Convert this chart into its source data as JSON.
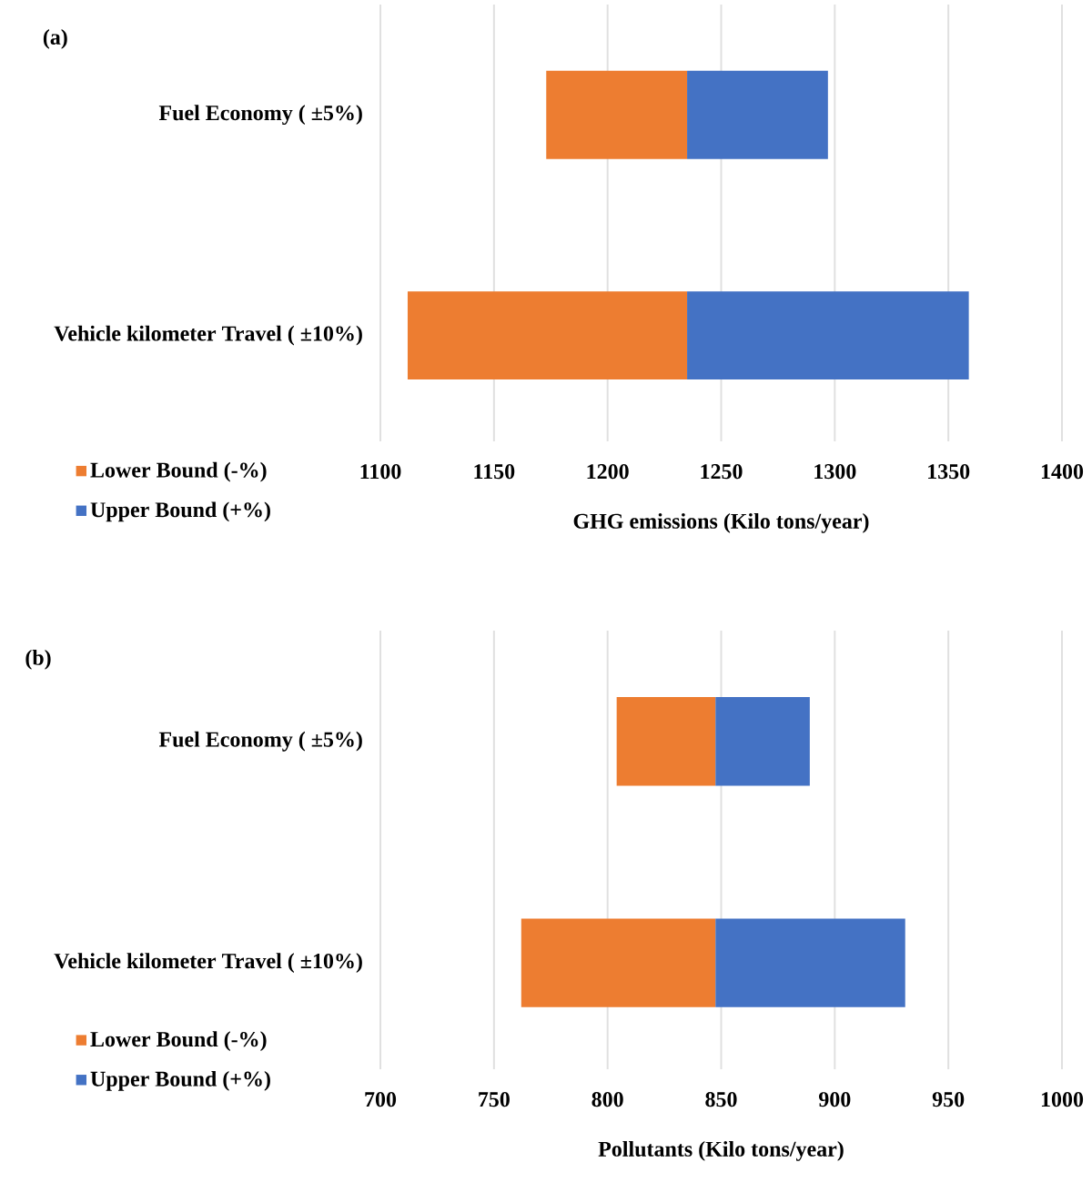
{
  "chart_data": [
    {
      "type": "bar",
      "orientation": "horizontal",
      "title": "(a)",
      "xlabel": "GHG emissions (Kilo tons/year)",
      "categories": [
        "Fuel Economy ( ±5%)",
        "Vehicle kilometer Travel ( ±10%)"
      ],
      "series": [
        {
          "name": "Lower Bound (-%)",
          "color": "#ed7d31",
          "base": [
            1173,
            1112
          ],
          "values": [
            62,
            123
          ]
        },
        {
          "name": "Upper Bound (+%)",
          "color": "#4472c4",
          "base": [
            1235,
            1235
          ],
          "values": [
            62,
            124
          ]
        }
      ],
      "xlim": [
        1100,
        1400
      ],
      "xticks": [
        1100,
        1150,
        1200,
        1250,
        1300,
        1350,
        1400
      ],
      "grid": "x",
      "legend": "bottom left"
    },
    {
      "type": "bar",
      "orientation": "horizontal",
      "title": "(b)",
      "xlabel": "Pollutants (Kilo tons/year)",
      "categories": [
        "Fuel Economy ( ±5%)",
        "Vehicle kilometer Travel ( ±10%)"
      ],
      "series": [
        {
          "name": "Lower Bound (-%)",
          "color": "#ed7d31",
          "base": [
            804,
            762
          ],
          "values": [
            43.5,
            85.5
          ]
        },
        {
          "name": "Upper Bound (+%)",
          "color": "#4472c4",
          "base": [
            847.5,
            847.5
          ],
          "values": [
            41.5,
            83.5
          ]
        }
      ],
      "xlim": [
        700,
        1000
      ],
      "xticks": [
        700,
        750,
        800,
        850,
        900,
        950,
        1000
      ],
      "grid": "x",
      "legend": "bottom left"
    }
  ]
}
